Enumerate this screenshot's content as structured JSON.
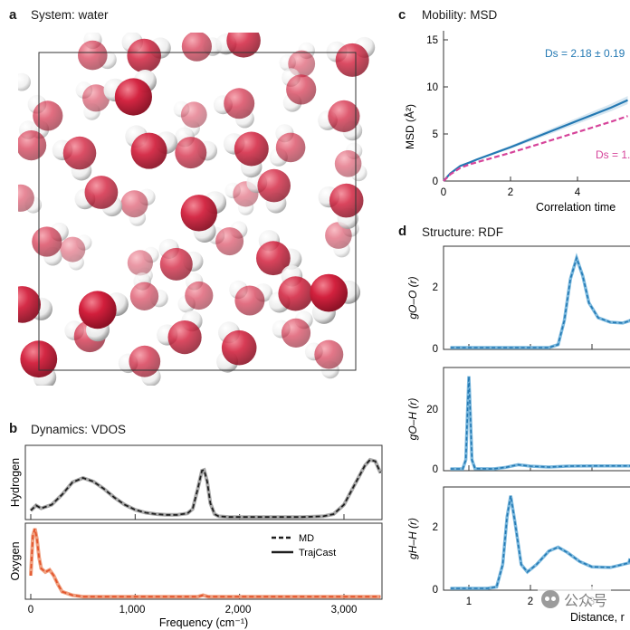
{
  "panel_a": {
    "letter": "a",
    "title": "System: water"
  },
  "panel_b": {
    "letter": "b",
    "title": "Dynamics: VDOS",
    "hydrogen_ylabel": "Hydrogen",
    "oxygen_ylabel": "Oxygen",
    "xlabel": "Frequency (cm⁻¹)",
    "xticks": [
      "0",
      "1,000",
      "2,000",
      "3,000"
    ],
    "legend": [
      "MD",
      "TrajCast"
    ]
  },
  "panel_c": {
    "letter": "c",
    "title": "Mobility: MSD",
    "ylabel": "MSD (Å²)",
    "xlabel": "Correlation time",
    "yticks": [
      "0",
      "5",
      "10",
      "15"
    ],
    "xticks": [
      "0",
      "2",
      "4"
    ],
    "annotation_blue": "Ds = 2.18 ± 0.19",
    "annotation_pink": "Ds = 1."
  },
  "panel_d": {
    "letter": "d",
    "title": "Structure: RDF",
    "ylabel_oo": "gO–O (r)",
    "ylabel_oh": "gO–H (r)",
    "ylabel_hh": "gH–H (r)",
    "yticks_oo": [
      "0",
      "2"
    ],
    "yticks_oh": [
      "0",
      "20"
    ],
    "yticks_hh": [
      "0",
      "2"
    ],
    "xticks": [
      "1",
      "2",
      "3"
    ],
    "xlabel": "Distance, r"
  },
  "watermark": {
    "text": "公众号"
  },
  "colors": {
    "oxygen": "#d21f3c",
    "hydrogen": "#e9e9e9",
    "blue": "#2479b3",
    "pink": "#d6449a",
    "orange": "#e2542b",
    "dark": "#1f1f1f"
  },
  "chart_data": [
    {
      "id": "vdos-hydrogen",
      "type": "line",
      "x": [
        0,
        50,
        100,
        200,
        300,
        400,
        500,
        600,
        700,
        800,
        900,
        1000,
        1100,
        1200,
        1300,
        1400,
        1500,
        1550,
        1600,
        1640,
        1660,
        1690,
        1720,
        1760,
        1800,
        1900,
        2000,
        2200,
        2400,
        2600,
        2800,
        2900,
        3000,
        3100,
        3200,
        3250,
        3300,
        3350
      ],
      "series": [
        {
          "name": "MD",
          "values": [
            0.1,
            0.17,
            0.13,
            0.18,
            0.32,
            0.49,
            0.55,
            0.5,
            0.4,
            0.28,
            0.18,
            0.11,
            0.07,
            0.05,
            0.04,
            0.04,
            0.06,
            0.12,
            0.4,
            0.65,
            0.66,
            0.5,
            0.2,
            0.05,
            0.02,
            0.01,
            0.01,
            0.01,
            0.01,
            0.01,
            0.02,
            0.05,
            0.18,
            0.45,
            0.72,
            0.8,
            0.78,
            0.62
          ]
        },
        {
          "name": "TrajCast",
          "values": [
            0.1,
            0.17,
            0.13,
            0.18,
            0.32,
            0.49,
            0.55,
            0.5,
            0.4,
            0.28,
            0.18,
            0.11,
            0.07,
            0.05,
            0.04,
            0.04,
            0.06,
            0.12,
            0.4,
            0.65,
            0.66,
            0.5,
            0.2,
            0.05,
            0.02,
            0.01,
            0.01,
            0.01,
            0.01,
            0.01,
            0.02,
            0.05,
            0.18,
            0.45,
            0.72,
            0.8,
            0.78,
            0.62
          ]
        }
      ],
      "xlim": [
        0,
        3350
      ]
    },
    {
      "id": "vdos-oxygen",
      "type": "line",
      "x": [
        0,
        20,
        40,
        60,
        80,
        100,
        140,
        180,
        220,
        260,
        300,
        400,
        500,
        700,
        1000,
        1500,
        1600,
        1650,
        1700,
        2000,
        3000,
        3350
      ],
      "series": [
        {
          "name": "MD",
          "values": [
            0.3,
            0.85,
            0.95,
            0.8,
            0.55,
            0.4,
            0.35,
            0.38,
            0.3,
            0.18,
            0.08,
            0.03,
            0.01,
            0.01,
            0.01,
            0.01,
            0.01,
            0.03,
            0.01,
            0.01,
            0.01,
            0.01
          ]
        },
        {
          "name": "TrajCast",
          "values": [
            0.3,
            0.85,
            0.95,
            0.8,
            0.55,
            0.4,
            0.35,
            0.38,
            0.3,
            0.18,
            0.08,
            0.03,
            0.01,
            0.01,
            0.01,
            0.01,
            0.01,
            0.03,
            0.01,
            0.01,
            0.01,
            0.01
          ]
        }
      ],
      "xlim": [
        0,
        3350
      ]
    },
    {
      "id": "msd",
      "type": "line",
      "x": [
        0,
        0.2,
        0.5,
        0.8,
        1,
        2,
        3,
        4,
        5,
        5.5
      ],
      "series": [
        {
          "name": "TrajCast",
          "values": [
            0,
            0.8,
            1.6,
            2.0,
            2.3,
            3.6,
            5.0,
            6.4,
            7.8,
            8.6
          ]
        },
        {
          "name": "MD",
          "values": [
            0,
            0.7,
            1.4,
            1.8,
            2.0,
            3.0,
            4.1,
            5.2,
            6.3,
            6.9
          ]
        }
      ],
      "xlim": [
        0,
        5.5
      ],
      "ylim": [
        0,
        16
      ]
    },
    {
      "id": "rdf-oo",
      "type": "line",
      "x": [
        0.7,
        2.3,
        2.45,
        2.55,
        2.65,
        2.75,
        2.85,
        2.95,
        3.1,
        3.3,
        3.5,
        3.8,
        4.1
      ],
      "series": [
        {
          "name": "MD",
          "values": [
            0,
            0,
            0.1,
            0.9,
            2.3,
            3.0,
            2.4,
            1.5,
            1.0,
            0.85,
            0.82,
            0.9,
            0.95
          ]
        }
      ],
      "xlim": [
        0.7,
        4.1
      ],
      "ylim": [
        0,
        3.3
      ]
    },
    {
      "id": "rdf-oh",
      "type": "line",
      "x": [
        0.7,
        0.9,
        0.95,
        0.98,
        1.0,
        1.02,
        1.05,
        1.1,
        1.4,
        1.6,
        1.8,
        2.0,
        2.3,
        2.6,
        3.0,
        3.5,
        4.1
      ],
      "series": [
        {
          "name": "MD",
          "values": [
            0,
            0,
            3,
            20,
            31,
            20,
            3,
            0.1,
            0,
            0.5,
            1.4,
            0.9,
            0.6,
            0.9,
            1.0,
            1.0,
            1.0
          ]
        }
      ],
      "xlim": [
        0.7,
        4.1
      ],
      "ylim": [
        0,
        35
      ]
    },
    {
      "id": "rdf-hh",
      "type": "line",
      "x": [
        0.7,
        1.3,
        1.45,
        1.55,
        1.62,
        1.68,
        1.75,
        1.85,
        1.95,
        2.1,
        2.3,
        2.45,
        2.6,
        2.8,
        3.0,
        3.3,
        3.6,
        4.1
      ],
      "series": [
        {
          "name": "MD",
          "values": [
            0,
            0,
            0.05,
            0.8,
            2.4,
            3.1,
            2.2,
            0.8,
            0.55,
            0.8,
            1.25,
            1.38,
            1.2,
            0.9,
            0.72,
            0.7,
            0.85,
            1.0
          ]
        }
      ],
      "xlim": [
        0.7,
        4.1
      ],
      "ylim": [
        0,
        3.3
      ]
    }
  ]
}
